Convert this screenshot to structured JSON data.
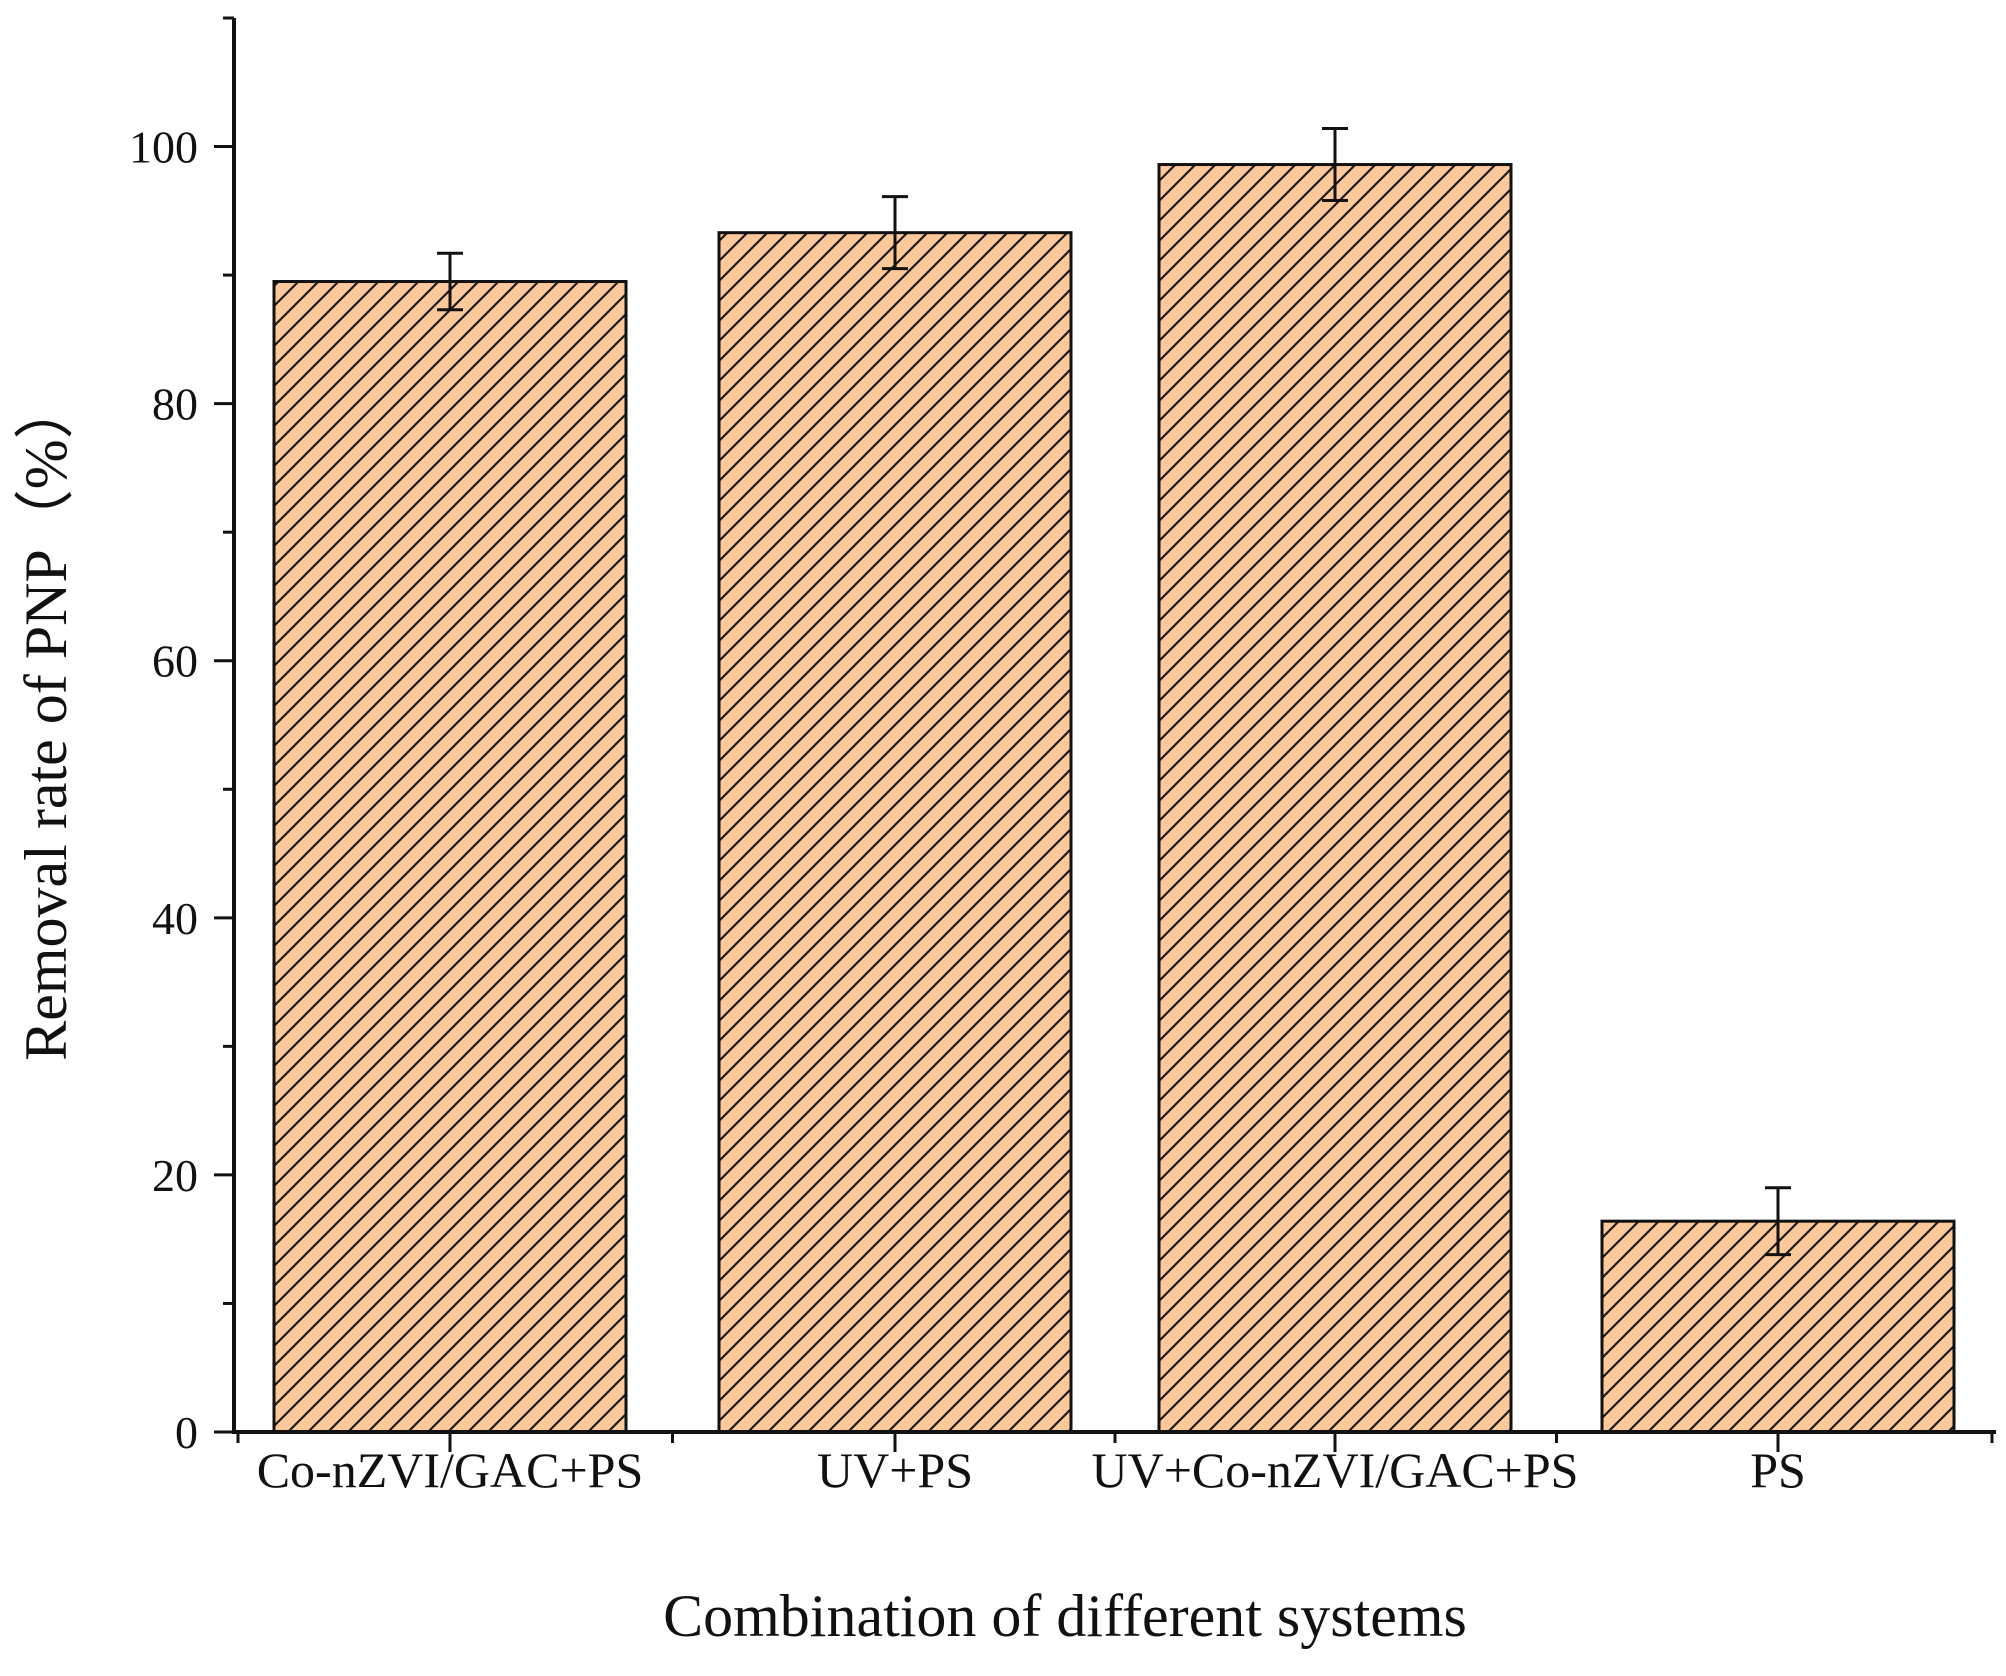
{
  "chart_data": {
    "type": "bar",
    "categories": [
      "Co-nZVI/GAC+PS",
      "UV+PS",
      "UV+Co-nZVI/GAC+PS",
      "PS"
    ],
    "values": [
      89.5,
      93.3,
      98.6,
      16.4
    ],
    "errors": [
      2.2,
      2.8,
      2.8,
      2.6
    ],
    "xlabel": "Combination of different systems",
    "ylabel": "Removal rate of PNP（%）",
    "ylim": [
      0,
      110
    ],
    "yticks": [
      0,
      20,
      40,
      60,
      80,
      100
    ],
    "yticks_minor": [
      10,
      30,
      50,
      70,
      90,
      110
    ],
    "grid": false,
    "bar_fill_color": "#fdc99b",
    "bar_hatch": "diagonal-lines",
    "bar_edge_color": "#111111"
  }
}
